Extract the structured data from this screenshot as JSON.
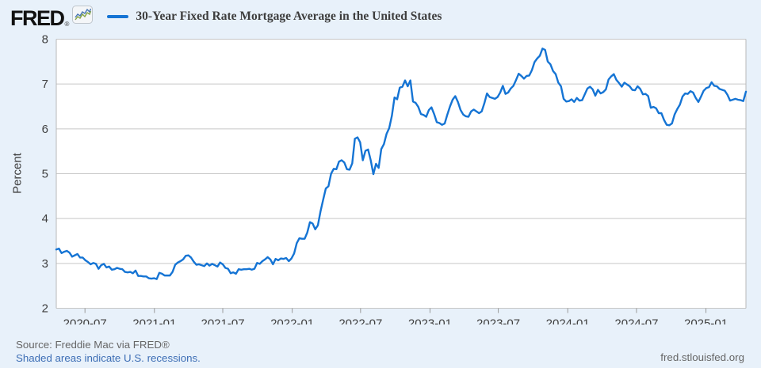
{
  "header": {
    "logo_text": "FRED",
    "registered_mark": "®",
    "logo_icon": "sparkline-chart-icon",
    "legend_label": "30-Year Fixed Rate Mortgage Average in the United States"
  },
  "footer": {
    "source": "Source: Freddie Mac via FRED®",
    "recession_note": "Shaded areas indicate U.S. recessions.",
    "site_url": "fred.stlouisfed.org"
  },
  "colors": {
    "page_background": "#e8f1fa",
    "plot_background": "#ffffff",
    "line": "#1574d4",
    "grid": "#c6c6c6",
    "plot_border": "#b9b9b9",
    "tick_mark": "#999999",
    "axis_text": "#3f3f3f",
    "title_text": "#3d3d3d",
    "source_text": "#666666",
    "link": "#3d6eb5",
    "logo_blue": "#4a77b4",
    "logo_green": "#86a545"
  },
  "chart_data": {
    "type": "line",
    "title": "30-Year Fixed Rate Mortgage Average in the United States",
    "xlabel": "",
    "ylabel": "Percent",
    "ylim": [
      2,
      8
    ],
    "yticks": [
      2,
      3,
      4,
      5,
      6,
      7,
      8
    ],
    "grid": true,
    "legend_position": "top",
    "frequency": "weekly",
    "x_start": "2020-04-16",
    "x_end": "2025-04-17",
    "xticks": [
      {
        "label": "2020-07",
        "f": 0.0416
      },
      {
        "label": "2021-01",
        "f": 0.1423
      },
      {
        "label": "2021-07",
        "f": 0.2414
      },
      {
        "label": "2022-01",
        "f": 0.3421
      },
      {
        "label": "2022-07",
        "f": 0.4412
      },
      {
        "label": "2023-01",
        "f": 0.5419
      },
      {
        "label": "2023-07",
        "f": 0.6409
      },
      {
        "label": "2024-01",
        "f": 0.7416
      },
      {
        "label": "2024-07",
        "f": 0.8413
      },
      {
        "label": "2025-01",
        "f": 0.942
      }
    ],
    "values": [
      3.31,
      3.33,
      3.23,
      3.26,
      3.28,
      3.24,
      3.15,
      3.18,
      3.21,
      3.13,
      3.13,
      3.07,
      3.03,
      2.98,
      3.01,
      2.99,
      2.88,
      2.96,
      2.99,
      2.91,
      2.93,
      2.86,
      2.87,
      2.9,
      2.88,
      2.87,
      2.81,
      2.8,
      2.81,
      2.78,
      2.84,
      2.72,
      2.72,
      2.71,
      2.71,
      2.67,
      2.66,
      2.67,
      2.65,
      2.79,
      2.77,
      2.73,
      2.73,
      2.73,
      2.81,
      2.97,
      3.02,
      3.05,
      3.09,
      3.17,
      3.18,
      3.13,
      3.04,
      2.97,
      2.98,
      2.96,
      2.94,
      3.0,
      2.95,
      2.99,
      2.96,
      2.93,
      3.02,
      2.98,
      2.9,
      2.88,
      2.78,
      2.8,
      2.77,
      2.87,
      2.86,
      2.87,
      2.87,
      2.88,
      2.86,
      2.88,
      3.01,
      2.99,
      3.05,
      3.09,
      3.14,
      3.09,
      2.98,
      3.1,
      3.07,
      3.11,
      3.1,
      3.12,
      3.05,
      3.11,
      3.22,
      3.45,
      3.56,
      3.55,
      3.55,
      3.69,
      3.92,
      3.89,
      3.76,
      3.85,
      4.16,
      4.42,
      4.67,
      4.72,
      5.0,
      5.11,
      5.1,
      5.27,
      5.3,
      5.25,
      5.1,
      5.09,
      5.23,
      5.78,
      5.81,
      5.7,
      5.3,
      5.51,
      5.54,
      5.3,
      4.99,
      5.22,
      5.13,
      5.55,
      5.66,
      5.89,
      6.02,
      6.29,
      6.7,
      6.66,
      6.92,
      6.94,
      7.08,
      6.95,
      7.08,
      6.61,
      6.58,
      6.49,
      6.33,
      6.31,
      6.27,
      6.42,
      6.48,
      6.33,
      6.15,
      6.13,
      6.09,
      6.12,
      6.32,
      6.5,
      6.65,
      6.73,
      6.6,
      6.42,
      6.32,
      6.28,
      6.27,
      6.39,
      6.43,
      6.39,
      6.35,
      6.39,
      6.57,
      6.79,
      6.71,
      6.69,
      6.67,
      6.71,
      6.81,
      6.96,
      6.78,
      6.81,
      6.9,
      6.96,
      7.09,
      7.23,
      7.18,
      7.12,
      7.18,
      7.19,
      7.31,
      7.49,
      7.57,
      7.63,
      7.79,
      7.76,
      7.5,
      7.44,
      7.29,
      7.22,
      7.03,
      6.95,
      6.67,
      6.61,
      6.62,
      6.66,
      6.6,
      6.69,
      6.63,
      6.64,
      6.77,
      6.9,
      6.94,
      6.88,
      6.74,
      6.87,
      6.79,
      6.82,
      6.88,
      7.1,
      7.17,
      7.22,
      7.09,
      7.02,
      6.94,
      7.03,
      6.99,
      6.95,
      6.87,
      6.86,
      6.95,
      6.89,
      6.77,
      6.78,
      6.73,
      6.47,
      6.49,
      6.46,
      6.35,
      6.35,
      6.2,
      6.09,
      6.08,
      6.12,
      6.32,
      6.44,
      6.54,
      6.72,
      6.79,
      6.78,
      6.84,
      6.81,
      6.69,
      6.6,
      6.72,
      6.85,
      6.91,
      6.93,
      7.04,
      6.96,
      6.95,
      6.89,
      6.87,
      6.85,
      6.76,
      6.63,
      6.65,
      6.67,
      6.65,
      6.64,
      6.62,
      6.83
    ]
  }
}
